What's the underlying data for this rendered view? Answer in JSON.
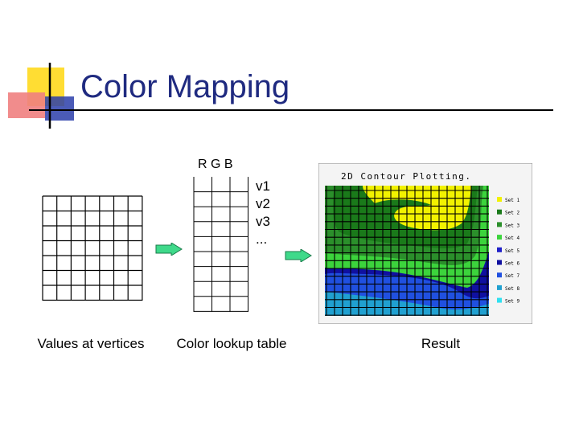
{
  "slide": {
    "title": "Color Mapping",
    "captions": {
      "values": "Values at vertices",
      "lookup": "Color lookup table",
      "result": "Result"
    },
    "lookup_header": "R G B",
    "lookup_rows": [
      "v1",
      "v2",
      "v3",
      "..."
    ]
  },
  "result_image": {
    "title": "2D Contour Plotting.",
    "legend": [
      {
        "label": "Set 1",
        "color": "#f2f200"
      },
      {
        "label": "Set 2",
        "color": "#1a7a1a"
      },
      {
        "label": "Set 3",
        "color": "#2b8f2b"
      },
      {
        "label": "Set 4",
        "color": "#3cd43c"
      },
      {
        "label": "Set 5",
        "color": "#2020c8"
      },
      {
        "label": "Set 6",
        "color": "#1010a0"
      },
      {
        "label": "Set 7",
        "color": "#2050e0"
      },
      {
        "label": "Set 8",
        "color": "#20a0d0"
      },
      {
        "label": "Set 9",
        "color": "#30e0f0"
      }
    ]
  },
  "colors": {
    "title": "#1f2a80",
    "arrow": "#3fd98a",
    "logo_yellow": "#ffdd33",
    "logo_red": "#f08080",
    "logo_blue": "#2c3eaa"
  }
}
